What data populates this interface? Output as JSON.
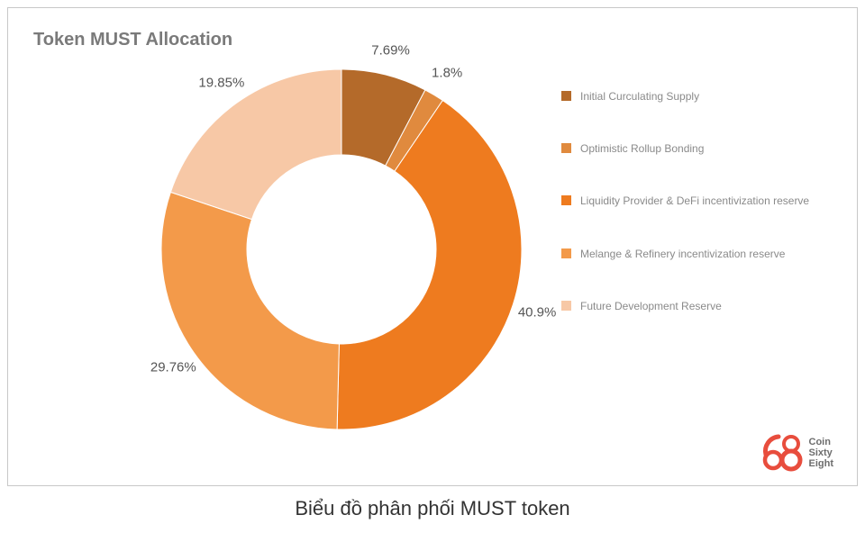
{
  "title": "Token MUST Allocation",
  "caption": "Biểu đồ phân phối MUST token",
  "chart": {
    "type": "donut",
    "background_color": "#ffffff",
    "outer_radius": 200,
    "inner_radius": 105,
    "inner_fill": "#ffffff",
    "start_angle_deg": -90,
    "title_fontsize": 20,
    "title_color": "#7a7a7a",
    "label_fontsize": 15,
    "label_color": "#555555",
    "legend_fontsize": 12,
    "legend_color": "#8a8a8a",
    "slices": [
      {
        "label": "Initial Curculating Supply",
        "value": 7.69,
        "display": "7.69%",
        "color": "#b46a2a"
      },
      {
        "label": "Optimistic Rollup Bonding",
        "value": 1.8,
        "display": "1.8%",
        "color": "#e08a3e"
      },
      {
        "label": "Liquidity Provider & DeFi incentivization reserve",
        "value": 40.9,
        "display": "40.9%",
        "color": "#ee7b1f"
      },
      {
        "label": "Melange & Refinery incentivization reserve",
        "value": 29.76,
        "display": "29.76%",
        "color": "#f39a4a"
      },
      {
        "label": "Future Development Reserve",
        "value": 19.85,
        "display": "19.85%",
        "color": "#f7c8a6"
      }
    ]
  },
  "logo": {
    "color": "#e84d3d",
    "text_color": "#6d6d6d",
    "lines": [
      "Coin",
      "Sixty",
      "Eight"
    ]
  }
}
